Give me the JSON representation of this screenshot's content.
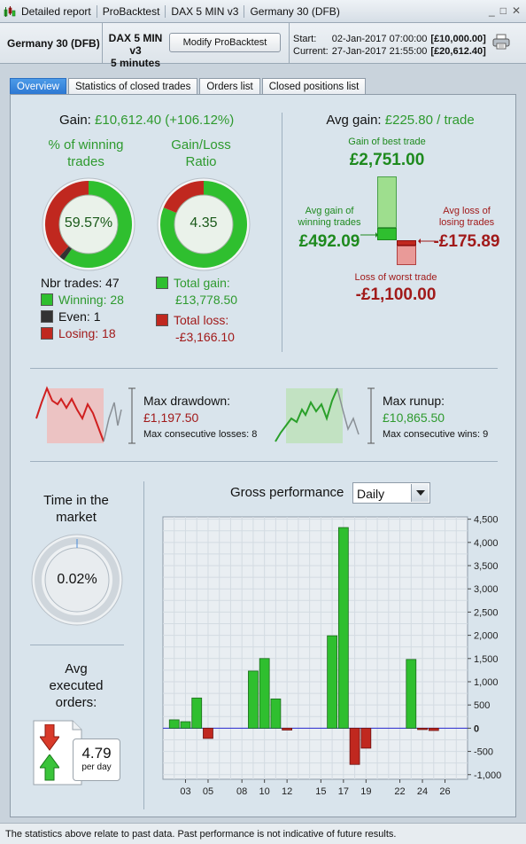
{
  "window": {
    "title_segments": [
      "Detailed report",
      "ProBacktest",
      "DAX 5 MIN v3",
      "Germany 30 (DFB)"
    ],
    "controls": [
      "_",
      "□",
      "✕"
    ]
  },
  "header": {
    "instrument": "Germany 30 (DFB)",
    "strategy_name": "DAX 5 MIN v3",
    "timeframe": "5 minutes",
    "modify_button": "Modify ProBacktest",
    "start_label": "Start:",
    "start_date": "02-Jan-2017 07:00:00",
    "start_capital": "[£10,000.00]",
    "current_label": "Current:",
    "current_date": "27-Jan-2017 21:55:00",
    "current_capital": "[£20,612.40]"
  },
  "tabs": [
    {
      "label": "Overview",
      "active": true
    },
    {
      "label": "Statistics of closed trades",
      "active": false
    },
    {
      "label": "Orders list",
      "active": false
    },
    {
      "label": "Closed positions list",
      "active": false
    }
  ],
  "gain": {
    "label": "Gain:",
    "value": "£10,612.40 (+106.12%)"
  },
  "winning": {
    "title_line1": "% of winning",
    "title_line2": "trades",
    "value": "59.57%",
    "fractions": {
      "winning": 0.5957,
      "even": 0.0213,
      "losing": 0.383
    }
  },
  "ratio": {
    "title_line1": "Gain/Loss",
    "title_line2": "Ratio",
    "value": "4.35",
    "fractions": {
      "gain": 0.813,
      "loss": 0.187
    }
  },
  "trades": {
    "nbr_label": "Nbr trades: 47",
    "winning": "Winning: 28",
    "even": "Even: 1",
    "losing": "Losing: 18",
    "total_gain_label": "Total gain:",
    "total_gain": "£13,778.50",
    "total_loss_label": "Total loss:",
    "total_loss": "-£3,166.10"
  },
  "avg": {
    "title_label": "Avg gain:",
    "title_value": "£225.80 / trade",
    "best_label": "Gain of best trade",
    "best_value": "£2,751.00",
    "avg_gain_label1": "Avg gain of",
    "avg_gain_label2": "winning trades",
    "avg_gain_value": "£492.09",
    "avg_loss_label1": "Avg loss of",
    "avg_loss_label2": "losing trades",
    "avg_loss_value": "-£175.89",
    "worst_label": "Loss of worst trade",
    "worst_value": "-£1,100.00"
  },
  "drawdown": {
    "label": "Max drawdown:",
    "value": "£1,197.50",
    "consecutive": "Max consecutive losses: 8"
  },
  "runup": {
    "label": "Max runup:",
    "value": "£10,865.50",
    "consecutive": "Max consecutive wins: 9"
  },
  "market": {
    "title_line1": "Time in the",
    "title_line2": "market",
    "value": "0.02%",
    "fraction": 0.0002
  },
  "orders": {
    "title_line1": "Avg",
    "title_line2": "executed",
    "title_line3": "orders:",
    "value": "4.79",
    "unit": "per day"
  },
  "performance": {
    "title": "Gross performance",
    "period_select": "Daily"
  },
  "chart_data": {
    "type": "bar",
    "title": "Gross performance",
    "x": [
      2,
      3,
      4,
      5,
      9,
      10,
      11,
      12,
      16,
      17,
      18,
      19,
      23,
      24,
      25
    ],
    "values": [
      180,
      140,
      650,
      -220,
      1230,
      1500,
      630,
      -40,
      1990,
      4320,
      -780,
      -430,
      1480,
      -30,
      -50
    ],
    "xticks": [
      "03",
      "05",
      "08",
      "10",
      "12",
      "15",
      "17",
      "19",
      "22",
      "24",
      "26"
    ],
    "xtick_values": [
      3,
      5,
      8,
      10,
      12,
      15,
      17,
      19,
      22,
      24,
      26
    ],
    "yticks": [
      "4,500",
      "4,000",
      "3,500",
      "3,000",
      "2,500",
      "2,000",
      "1,500",
      "1,000",
      "500",
      "0",
      "-500",
      "-1,000"
    ],
    "ytick_values": [
      4500,
      4000,
      3500,
      3000,
      2500,
      2000,
      1500,
      1000,
      500,
      0,
      -500,
      -1000
    ],
    "ylim": [
      -1100,
      4550
    ],
    "xlim": [
      1,
      28
    ],
    "grid": true,
    "positive_color": "#2fbf2f",
    "negative_color": "#c0281f"
  },
  "footer": "The statistics above relate to past data. Past performance is not indicative of future results.",
  "colors": {
    "win": "#2fbf2f",
    "loss": "#c0281f",
    "even": "#333333",
    "accent_tab": "#2c78d3"
  }
}
